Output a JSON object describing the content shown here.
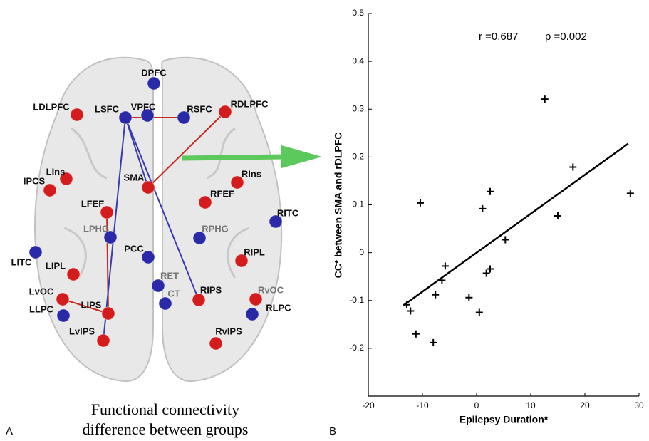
{
  "diagram": {
    "panel_label": "A",
    "caption": [
      "Functional connectivity",
      "difference between groups"
    ],
    "nodes": [
      {
        "label": "DPFC",
        "color": "#2a2aa8"
      },
      {
        "label": "LDLPFC",
        "color": "#d41c1c"
      },
      {
        "label": "LSFC",
        "color": "#2a2aa8"
      },
      {
        "label": "VPFC",
        "color": "#2a2aa8"
      },
      {
        "label": "RSFC",
        "color": "#2a2aa8"
      },
      {
        "label": "RDLPFC",
        "color": "#d41c1c"
      },
      {
        "label": "LIns",
        "color": "#d41c1c"
      },
      {
        "label": "IPCS",
        "color": "#d41c1c"
      },
      {
        "label": "SMA",
        "color": "#d41c1c"
      },
      {
        "label": "RIns",
        "color": "#d41c1c"
      },
      {
        "label": "RFEF",
        "color": "#d41c1c"
      },
      {
        "label": "LFEF",
        "color": "#d41c1c"
      },
      {
        "label": "RITC",
        "color": "#2a2aa8"
      },
      {
        "label": "LPHG",
        "color": "#2a2aa8"
      },
      {
        "label": "RPHG",
        "color": "#2a2aa8"
      },
      {
        "label": "PCC",
        "color": "#2a2aa8"
      },
      {
        "label": "LITC",
        "color": "#2a2aa8"
      },
      {
        "label": "RIPL",
        "color": "#d41c1c"
      },
      {
        "label": "LIPL",
        "color": "#d41c1c"
      },
      {
        "label": "RET",
        "color": "#2a2aa8"
      },
      {
        "label": "LvOC",
        "color": "#d41c1c"
      },
      {
        "label": "RIPS",
        "color": "#d41c1c"
      },
      {
        "label": "RvOC",
        "color": "#d41c1c"
      },
      {
        "label": "CT",
        "color": "#2a2aa8"
      },
      {
        "label": "LLPC",
        "color": "#2a2aa8"
      },
      {
        "label": "LIPS",
        "color": "#d41c1c"
      },
      {
        "label": "RLPC",
        "color": "#2a2aa8"
      },
      {
        "label": "LvIPS",
        "color": "#d41c1c"
      },
      {
        "label": "RvIPS",
        "color": "#d41c1c"
      }
    ]
  },
  "chart_data": {
    "type": "scatter",
    "panel_label": "B",
    "annotations": [
      "r =0.687",
      "p =0.002"
    ],
    "x_label": "Epilepsy Duration*",
    "y_label": "CC* between SMA and rDLPFC",
    "color": "#000000",
    "x": [
      -12.9,
      -12.2,
      -11.2,
      -10.4,
      -8.0,
      -7.6,
      -6.4,
      -5.8,
      -1.4,
      0.5,
      1.1,
      1.8,
      2.5,
      2.5,
      5.3,
      12.6,
      15.0,
      17.8,
      28.4
    ],
    "values": [
      -0.109,
      -0.122,
      -0.17,
      0.104,
      -0.188,
      -0.088,
      -0.058,
      -0.028,
      -0.094,
      -0.125,
      0.092,
      -0.043,
      -0.034,
      0.128,
      0.027,
      0.321,
      0.077,
      0.179,
      0.124
    ],
    "fit_line": {
      "x": [
        -13.5,
        28
      ],
      "y": [
        -0.11,
        0.228
      ]
    },
    "xlim": [
      -20,
      30
    ],
    "xticks": [
      -20,
      -10,
      0,
      10,
      20,
      30
    ],
    "ylim": [
      -0.3,
      0.5
    ],
    "yticks": [
      -0.2,
      -0.1,
      0,
      0.1,
      0.2,
      0.3,
      0.4,
      0.5
    ]
  }
}
